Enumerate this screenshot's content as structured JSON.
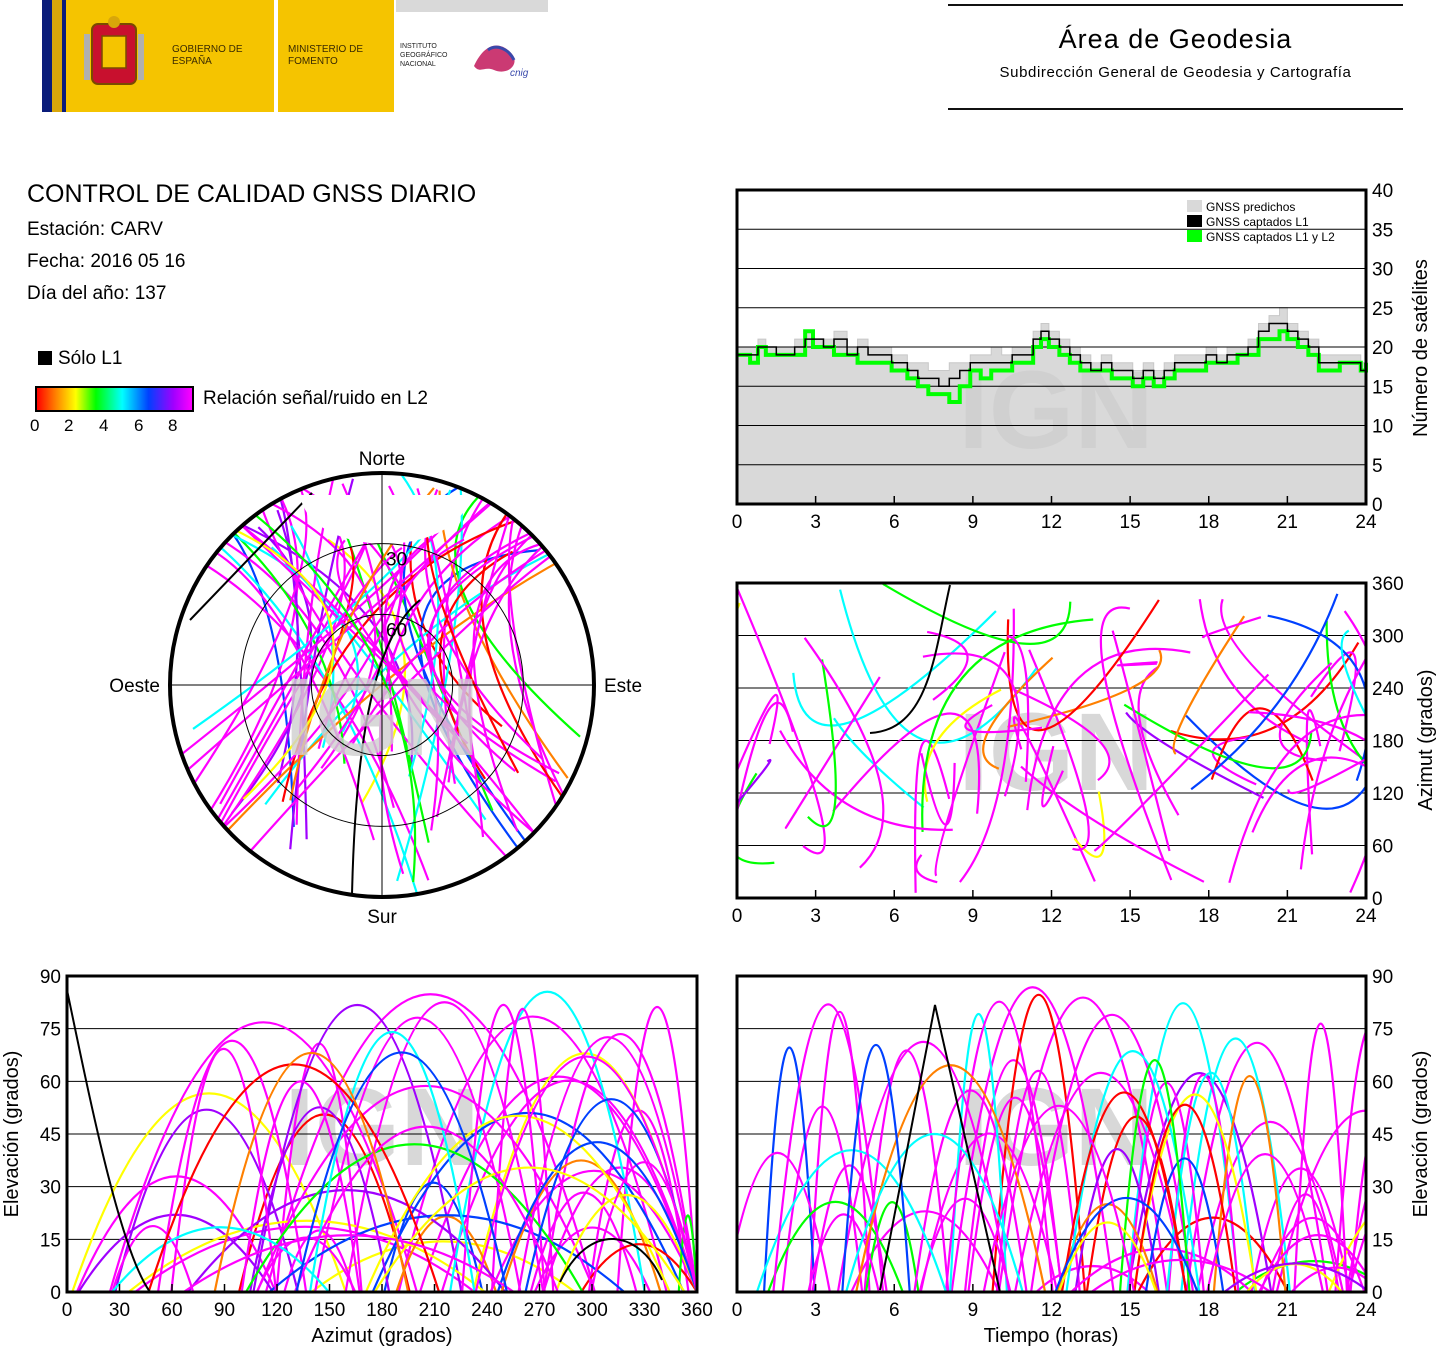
{
  "header": {
    "gobierno": "GOBIERNO DE ESPAÑA",
    "ministerio": "MINISTERIO DE FOMENTO",
    "instituto": "INSTITUTO GEOGRÁFICO NACIONAL",
    "cnig": "cnig",
    "area_title": "Área de Geodesia",
    "area_subtitle": "Subdirección General de Geodesia y Cartografía"
  },
  "report": {
    "title": "CONTROL DE CALIDAD GNSS DIARIO",
    "station": "Estación: CARV",
    "date": "Fecha: 2016 05 16",
    "doy": "Día del año: 137"
  },
  "legend": {
    "l1_only": "Sólo L1",
    "snr_label": "Relación señal/ruido en L2",
    "snr_ticks": [
      "0",
      "2",
      "4",
      "6",
      "8"
    ],
    "snr_colors": [
      "#ff0000",
      "#ff8000",
      "#ffff00",
      "#00ff00",
      "#00ffff",
      "#0040ff",
      "#a000ff",
      "#ff00ff"
    ]
  },
  "watermark": "IGN",
  "colors": {
    "l1_only": "#000000",
    "predicted": "#d9d9d9",
    "l1l2": "#00ff00",
    "gridline": "#000000"
  },
  "chart_data": [
    {
      "type": "polar-skyplot",
      "id": "skyplot",
      "directions": {
        "north": "Norte",
        "south": "Sur",
        "east": "Este",
        "west": "Oeste"
      },
      "elevation_rings": [
        0,
        30,
        60
      ],
      "ring_labels": [
        "30",
        "60"
      ]
    },
    {
      "type": "step-line",
      "id": "satellites",
      "ylabel": "Número de satélites",
      "xlim": [
        0,
        24
      ],
      "ylim": [
        0,
        40
      ],
      "xticks": [
        "0",
        "3",
        "6",
        "9",
        "12",
        "15",
        "18",
        "21",
        "24"
      ],
      "yticks": [
        "0",
        "5",
        "10",
        "15",
        "20",
        "25",
        "30",
        "35",
        "40"
      ],
      "legend": [
        "GNSS predichos",
        "GNSS captados L1",
        "GNSS captados L1 y L2"
      ],
      "x": [
        0,
        0.5,
        0.8,
        1.1,
        1.5,
        2.2,
        2.6,
        2.9,
        3.3,
        3.7,
        4.2,
        4.6,
        5.0,
        5.5,
        5.9,
        6.2,
        6.5,
        6.9,
        7.3,
        7.7,
        8.1,
        8.5,
        8.9,
        9.3,
        9.7,
        10.1,
        10.5,
        10.9,
        11.3,
        11.6,
        11.9,
        12.3,
        12.7,
        13.1,
        13.5,
        13.9,
        14.3,
        14.7,
        15.1,
        15.5,
        15.9,
        16.3,
        16.7,
        17.1,
        17.5,
        17.9,
        18.3,
        18.7,
        19.1,
        19.5,
        19.9,
        20.3,
        20.7,
        21.0,
        21.4,
        21.8,
        22.2,
        22.6,
        23.0,
        23.4,
        23.8,
        24
      ],
      "predicted": [
        20,
        20,
        21,
        20,
        20,
        21,
        22,
        21,
        21,
        22,
        20,
        21,
        20,
        20,
        19,
        19,
        18,
        18,
        17,
        17,
        18,
        18,
        19,
        19,
        20,
        19,
        20,
        20,
        22,
        23,
        22,
        21,
        20,
        19,
        18,
        19,
        18,
        18,
        17,
        18,
        17,
        18,
        19,
        19,
        19,
        20,
        19,
        20,
        20,
        21,
        23,
        24,
        25,
        23,
        22,
        21,
        19,
        19,
        19,
        19,
        18,
        18
      ],
      "l1": [
        19,
        19,
        20,
        20,
        19,
        20,
        21,
        21,
        20,
        21,
        19,
        20,
        19,
        19,
        18,
        18,
        17,
        16,
        16,
        15,
        16,
        17,
        18,
        18,
        18,
        18,
        19,
        19,
        21,
        22,
        21,
        20,
        19,
        18,
        17,
        18,
        17,
        17,
        16,
        17,
        16,
        17,
        18,
        18,
        18,
        19,
        18,
        19,
        19,
        20,
        22,
        23,
        23,
        22,
        21,
        20,
        18,
        18,
        18,
        18,
        17,
        18
      ],
      "l1l2": [
        19,
        18,
        20,
        19,
        19,
        19,
        22,
        20,
        20,
        19,
        19,
        18,
        18,
        18,
        17,
        17,
        16,
        15,
        14,
        14,
        13,
        15,
        17,
        16,
        17,
        17,
        18,
        18,
        20,
        21,
        20,
        19,
        18,
        17,
        17,
        17,
        16,
        16,
        15,
        16,
        15,
        16,
        17,
        17,
        17,
        18,
        18,
        18,
        19,
        19,
        21,
        21,
        22,
        21,
        20,
        19,
        17,
        17,
        18,
        18,
        17,
        18
      ]
    },
    {
      "type": "scatter",
      "id": "azimuth-time",
      "ylabel": "Azimut (grados)",
      "xlim": [
        0,
        24
      ],
      "ylim": [
        0,
        360
      ],
      "xticks": [
        "0",
        "3",
        "6",
        "9",
        "12",
        "15",
        "18",
        "21",
        "24"
      ],
      "yticks": [
        "0",
        "60",
        "120",
        "180",
        "240",
        "300",
        "360"
      ]
    },
    {
      "type": "scatter",
      "id": "elevation-azimuth",
      "xlabel": "Azimut (grados)",
      "ylabel": "Elevación (grados)",
      "xlim": [
        0,
        360
      ],
      "ylim": [
        0,
        90
      ],
      "xticks": [
        "0",
        "30",
        "60",
        "90",
        "120",
        "150",
        "180",
        "210",
        "240",
        "270",
        "300",
        "330",
        "360"
      ],
      "yticks": [
        "0",
        "15",
        "30",
        "45",
        "60",
        "75",
        "90"
      ]
    },
    {
      "type": "scatter",
      "id": "elevation-time",
      "xlabel": "Tiempo (horas)",
      "ylabel": "Elevación (grados)",
      "xlim": [
        0,
        24
      ],
      "ylim": [
        0,
        90
      ],
      "xticks": [
        "0",
        "3",
        "6",
        "9",
        "12",
        "15",
        "18",
        "21",
        "24"
      ],
      "yticks": [
        "0",
        "15",
        "30",
        "45",
        "60",
        "75",
        "90"
      ]
    }
  ]
}
